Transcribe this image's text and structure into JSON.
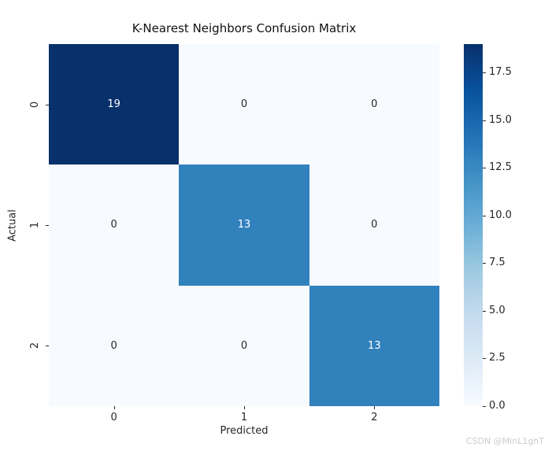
{
  "watermark": "CSDN @MinL1ghT",
  "chart_data": {
    "type": "heatmap",
    "title": "K-Nearest Neighbors Confusion Matrix",
    "xlabel": "Predicted",
    "ylabel": "Actual",
    "x_tick_labels": [
      "0",
      "1",
      "2"
    ],
    "y_tick_labels": [
      "0",
      "1",
      "2"
    ],
    "matrix": [
      [
        19,
        0,
        0
      ],
      [
        0,
        13,
        0
      ],
      [
        0,
        0,
        13
      ]
    ],
    "vmin": 0,
    "vmax": 19,
    "colormap": "Blues",
    "colorbar_tick_labels": [
      "0.0",
      "2.5",
      "5.0",
      "7.5",
      "10.0",
      "12.5",
      "15.0",
      "17.5"
    ],
    "colorbar_tick_values": [
      0,
      2.5,
      5,
      7.5,
      10,
      12.5,
      15,
      17.5
    ],
    "colormap_stops": [
      "#f7fbff",
      "#deebf7",
      "#c6dbef",
      "#9ecae1",
      "#6baed6",
      "#4292c6",
      "#2171b5",
      "#08519c",
      "#08306b"
    ],
    "cell_colors": [
      [
        "#08306b",
        "#f7fbff",
        "#f7fbff"
      ],
      [
        "#f7fbff",
        "#3181bd",
        "#f7fbff"
      ],
      [
        "#f7fbff",
        "#f7fbff",
        "#3181bd"
      ]
    ],
    "cell_text_colors": [
      [
        "#ffffff",
        "#262626",
        "#262626"
      ],
      [
        "#262626",
        "#ffffff",
        "#262626"
      ],
      [
        "#262626",
        "#262626",
        "#ffffff"
      ]
    ],
    "legend_position": "right-colorbar",
    "grid": false
  }
}
